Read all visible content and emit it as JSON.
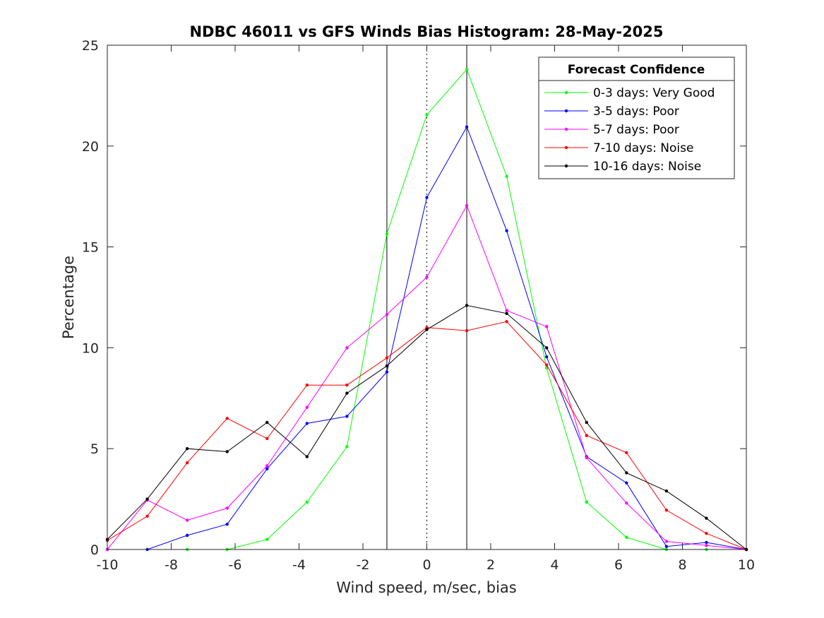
{
  "chart_data": {
    "type": "line",
    "title": "NDBC 46011 vs GFS Winds Bias Histogram: 28-May-2025",
    "xlabel": "Wind speed, m/sec, bias",
    "ylabel": "Percentage",
    "xlim": [
      -10,
      10
    ],
    "ylim": [
      0,
      25
    ],
    "xticks": [
      -10,
      -8,
      -6,
      -4,
      -2,
      0,
      2,
      4,
      6,
      8,
      10
    ],
    "yticks": [
      0,
      5,
      10,
      15,
      20,
      25
    ],
    "x": [
      -10,
      -8.75,
      -7.5,
      -6.25,
      -5,
      -3.75,
      -2.5,
      -1.25,
      0,
      1.25,
      2.5,
      3.75,
      5,
      6.25,
      7.5,
      8.75,
      10
    ],
    "vlines": [
      {
        "x": -1.25,
        "style": "solid"
      },
      {
        "x": 0,
        "style": "dotted"
      },
      {
        "x": 1.25,
        "style": "solid"
      }
    ],
    "legend": {
      "title": "Forecast Confidence",
      "position": "top-right"
    },
    "grid": false,
    "series": [
      {
        "name": "0-3 days: Very Good",
        "color": "#00ff00",
        "values": [
          0,
          0,
          0,
          0,
          0.5,
          2.35,
          5.1,
          15.65,
          21.55,
          23.8,
          18.5,
          9.0,
          2.35,
          0.6,
          0,
          0,
          0
        ]
      },
      {
        "name": "3-5 days: Poor",
        "color": "#0000ff",
        "values": [
          0,
          0,
          0.7,
          1.25,
          4.0,
          6.25,
          6.6,
          8.8,
          17.45,
          20.95,
          15.8,
          9.55,
          4.6,
          3.3,
          0.15,
          0.35,
          0
        ]
      },
      {
        "name": "5-7 days: Poor",
        "color": "#ff00ff",
        "values": [
          0,
          2.45,
          1.45,
          2.05,
          4.15,
          7.05,
          10.0,
          11.65,
          13.5,
          17.05,
          11.85,
          11.05,
          4.55,
          2.3,
          0.4,
          0.2,
          0
        ]
      },
      {
        "name": "7-10 days: Noise",
        "color": "#ff0000",
        "values": [
          0.45,
          1.65,
          4.3,
          6.5,
          5.5,
          8.15,
          8.15,
          9.5,
          11.0,
          10.85,
          11.3,
          9.15,
          5.65,
          4.8,
          1.95,
          0.8,
          0
        ]
      },
      {
        "name": "10-16 days: Noise",
        "color": "#000000",
        "values": [
          0.5,
          2.5,
          5.0,
          4.85,
          6.3,
          4.6,
          7.75,
          9.1,
          10.9,
          12.1,
          11.7,
          10.0,
          6.3,
          3.8,
          2.9,
          1.55,
          0
        ]
      }
    ]
  }
}
